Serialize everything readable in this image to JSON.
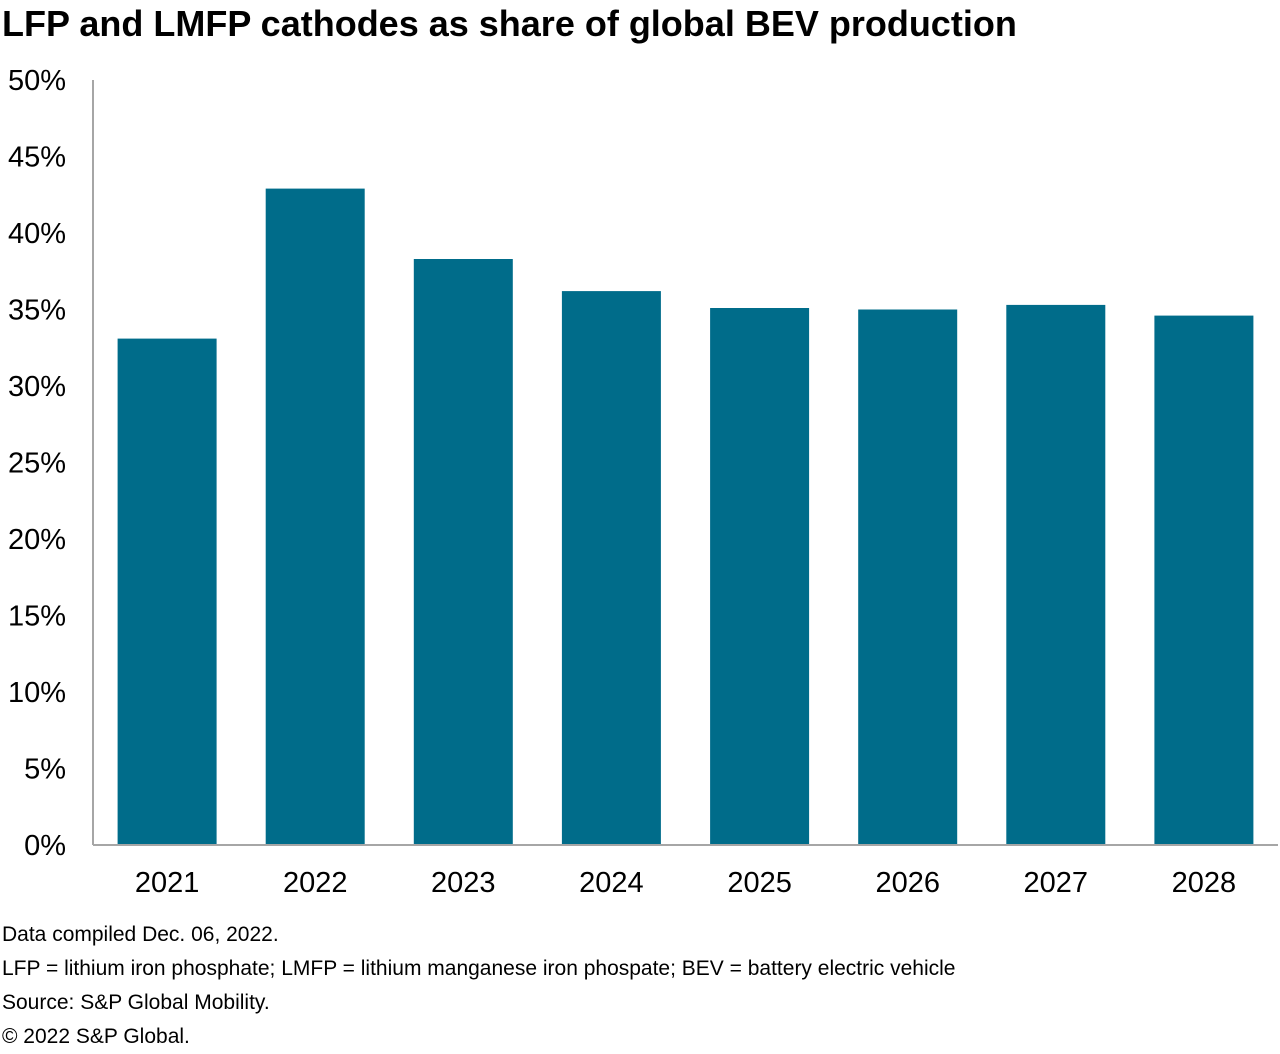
{
  "chart_data": {
    "type": "bar",
    "title": "LFP and LMFP cathodes as share of global BEV production",
    "xlabel": "",
    "ylabel": "",
    "categories": [
      "2021",
      "2022",
      "2023",
      "2024",
      "2025",
      "2026",
      "2027",
      "2028"
    ],
    "values": [
      33.1,
      42.9,
      38.3,
      36.2,
      35.1,
      35.0,
      35.3,
      34.6
    ],
    "unit": "%",
    "ylim": [
      0,
      50
    ],
    "yticks": [
      0,
      5,
      10,
      15,
      20,
      25,
      30,
      35,
      40,
      45,
      50
    ],
    "ytick_labels": [
      "0%",
      "5%",
      "10%",
      "15%",
      "20%",
      "25%",
      "30%",
      "35%",
      "40%",
      "45%",
      "50%"
    ],
    "grid": false,
    "legend": "none",
    "bar_color": "#006C8A"
  },
  "notes": {
    "compiled": "Data compiled Dec. 06, 2022.",
    "definitions": "LFP = lithium iron phosphate; LMFP = lithium manganese iron phospate; BEV = battery electric vehicle",
    "source": "Source: S&P Global Mobility.",
    "copyright": "© 2022 S&P Global."
  }
}
